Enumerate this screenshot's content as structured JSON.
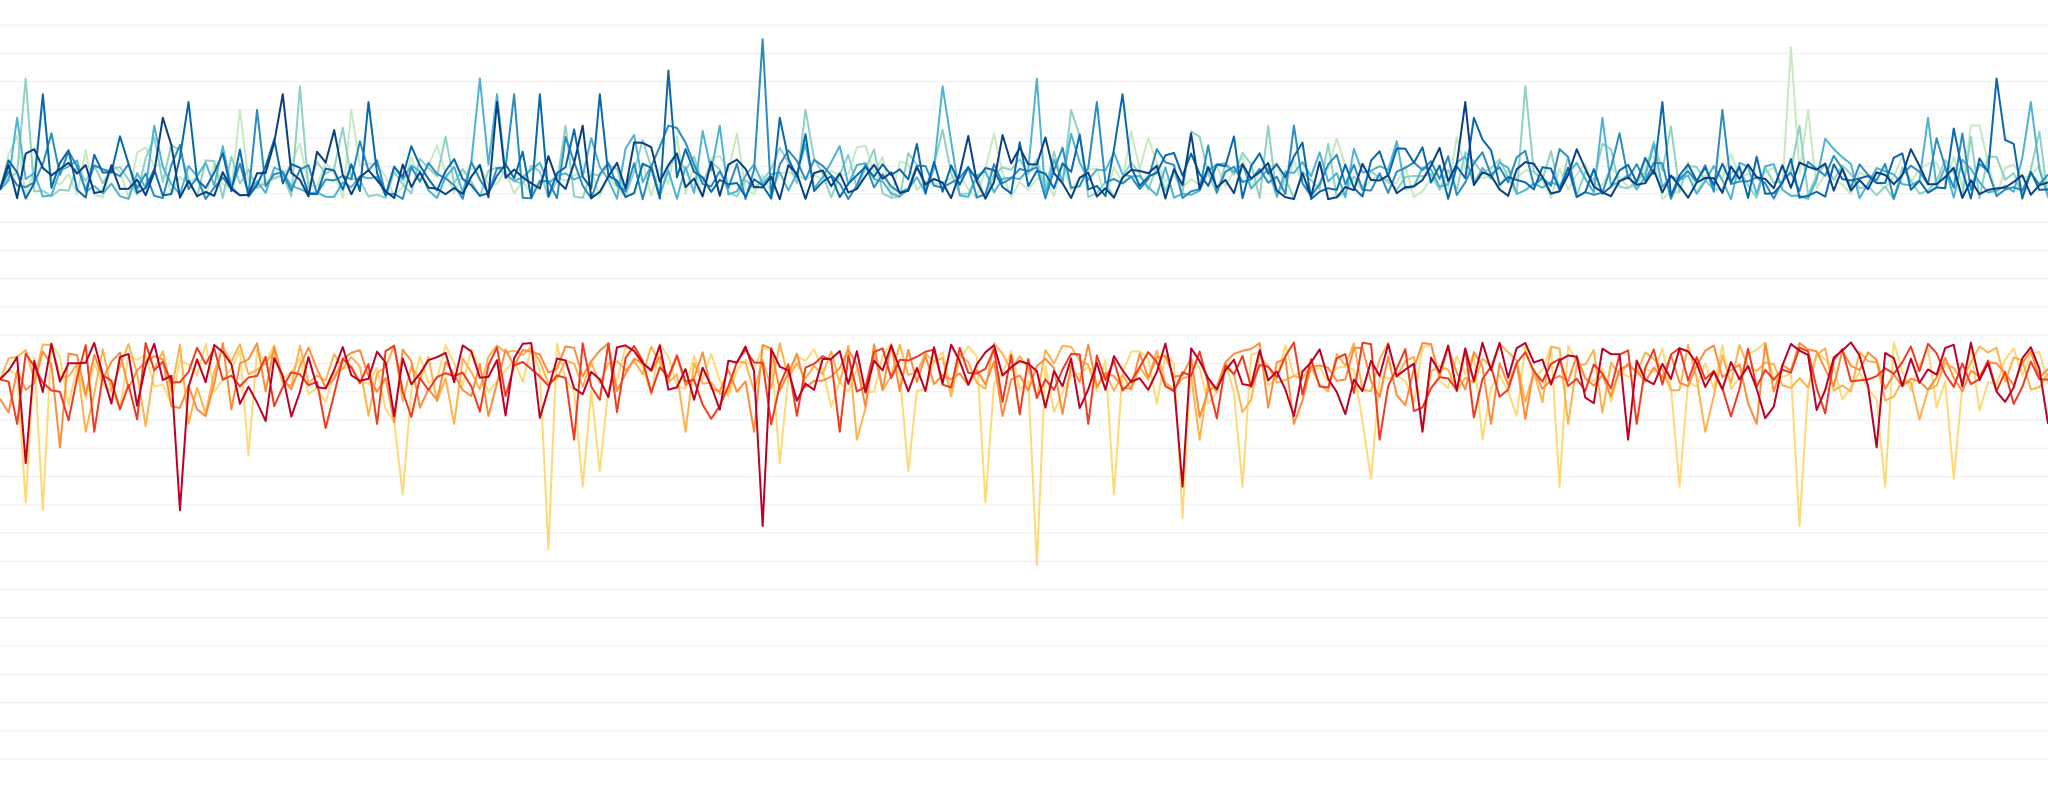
{
  "chart_data": {
    "type": "line",
    "title": "",
    "xlabel": "",
    "ylabel": "",
    "x_count": 240,
    "ylim": [
      0,
      100
    ],
    "grid": true,
    "grid_lines": [
      96.8,
      93.2,
      89.6,
      86.0,
      82.4,
      78.8,
      75.3,
      71.7,
      68.1,
      64.5,
      60.9,
      57.3,
      53.7,
      50.1,
      46.5,
      42.9,
      39.3,
      35.7,
      32.1,
      28.5,
      24.9,
      21.3,
      17.7,
      14.1,
      10.5,
      6.9,
      3.3
    ],
    "grid_color": "#eeeeee",
    "legend": "none",
    "groups": [
      {
        "name_hint": "upper",
        "baseline": 77.0,
        "direction": "up",
        "noise": 1.2,
        "series": [
          {
            "color": "#c7e9c0",
            "seed": 11,
            "spikes": [
              [
                5,
                87
              ],
              [
                28,
                86
              ],
              [
                41,
                86
              ],
              [
                48,
                80
              ],
              [
                86,
                83
              ],
              [
                103,
                80
              ],
              [
                116,
                83
              ],
              [
                145,
                80
              ],
              [
                206,
                78
              ],
              [
                209,
                94
              ],
              [
                211,
                86
              ],
              [
                222,
                80
              ],
              [
                230,
                84
              ],
              [
                243,
                79
              ]
            ]
          },
          {
            "color": "#8fd1c4",
            "seed": 23,
            "spikes": [
              [
                3,
                90
              ],
              [
                35,
                89
              ],
              [
                66,
                84
              ],
              [
                94,
                86
              ],
              [
                125,
                86
              ],
              [
                148,
                84
              ],
              [
                178,
                89
              ],
              [
                210,
                84
              ],
              [
                233,
                80
              ]
            ]
          },
          {
            "color": "#4eb3d3",
            "seed": 37,
            "spikes": [
              [
                2,
                85
              ],
              [
                18,
                84
              ],
              [
                56,
                90
              ],
              [
                58,
                88
              ],
              [
                84,
                84
              ],
              [
                110,
                89
              ],
              [
                121,
                90
              ],
              [
                163,
                82
              ],
              [
                187,
                85
              ],
              [
                214,
                81
              ],
              [
                225,
                85
              ],
              [
                237,
                87
              ]
            ]
          },
          {
            "color": "#2b8cbe",
            "seed": 51,
            "spikes": [
              [
                6,
                83
              ],
              [
                30,
                86
              ],
              [
                42,
                82
              ],
              [
                60,
                88
              ],
              [
                78,
                84
              ],
              [
                89,
                95
              ],
              [
                128,
                87
              ],
              [
                135,
                81
              ],
              [
                151,
                84
              ],
              [
                182,
                81
              ],
              [
                201,
                86
              ],
              [
                229,
                83
              ]
            ]
          },
          {
            "color": "#0868ac",
            "seed": 67,
            "spikes": [
              [
                5,
                88
              ],
              [
                22,
                87
              ],
              [
                43,
                87
              ],
              [
                63,
                88
              ],
              [
                70,
                88
              ],
              [
                78,
                91
              ],
              [
                91,
                85
              ],
              [
                131,
                88
              ],
              [
                172,
                85
              ],
              [
                194,
                87
              ],
              [
                233,
                90
              ]
            ]
          },
          {
            "color": "#084081",
            "seed": 79,
            "spikes": [
              [
                4,
                81
              ],
              [
                19,
                85
              ],
              [
                33,
                88
              ],
              [
                58,
                87
              ],
              [
                68,
                84
              ],
              [
                139,
                83
              ],
              [
                171,
                87
              ],
              [
                223,
                81
              ]
            ]
          }
        ]
      },
      {
        "name_hint": "lower",
        "baseline": 53.2,
        "direction": "down",
        "noise": 1.6,
        "series": [
          {
            "color": "#fed976",
            "seed": 13,
            "spikes": [
              [
                3,
                36
              ],
              [
                5,
                35
              ],
              [
                29,
                42
              ],
              [
                47,
                37
              ],
              [
                64,
                30
              ],
              [
                68,
                38
              ],
              [
                70,
                40
              ],
              [
                91,
                41
              ],
              [
                106,
                40
              ],
              [
                115,
                36
              ],
              [
                121,
                28
              ],
              [
                130,
                37
              ],
              [
                138,
                34
              ],
              [
                145,
                38
              ],
              [
                160,
                39
              ],
              [
                173,
                44
              ],
              [
                182,
                38
              ],
              [
                196,
                38
              ],
              [
                210,
                33
              ],
              [
                220,
                38
              ],
              [
                228,
                39
              ]
            ]
          },
          {
            "color": "#feb24c",
            "seed": 29,
            "spikes": [
              [
                10,
                45
              ],
              [
                22,
                46
              ],
              [
                53,
                46
              ],
              [
                80,
                45
              ],
              [
                100,
                44
              ],
              [
                140,
                44
              ],
              [
                166,
                45
              ],
              [
                183,
                46
              ],
              [
                199,
                45
              ]
            ]
          },
          {
            "color": "#fd8d3c",
            "seed": 43,
            "spikes": [
              [
                7,
                43
              ],
              [
                24,
                47
              ],
              [
                57,
                47
              ],
              [
                88,
                45
              ],
              [
                117,
                47
              ],
              [
                151,
                46
              ],
              [
                174,
                46
              ],
              [
                205,
                46
              ]
            ]
          },
          {
            "color": "#f03b20",
            "seed": 59,
            "spikes": [
              [
                2,
                46
              ],
              [
                11,
                45
              ],
              [
                44,
                46
              ],
              [
                67,
                44
              ],
              [
                98,
                45
              ],
              [
                127,
                46
              ],
              [
                161,
                44
              ],
              [
                191,
                46
              ]
            ]
          },
          {
            "color": "#bd0026",
            "seed": 71,
            "spikes": [
              [
                3,
                41
              ],
              [
                21,
                35
              ],
              [
                46,
                47
              ],
              [
                89,
                33
              ],
              [
                138,
                38
              ],
              [
                151,
                47
              ],
              [
                166,
                45
              ],
              [
                190,
                44
              ],
              [
                219,
                43
              ],
              [
                239,
                46
              ]
            ]
          }
        ]
      }
    ]
  }
}
